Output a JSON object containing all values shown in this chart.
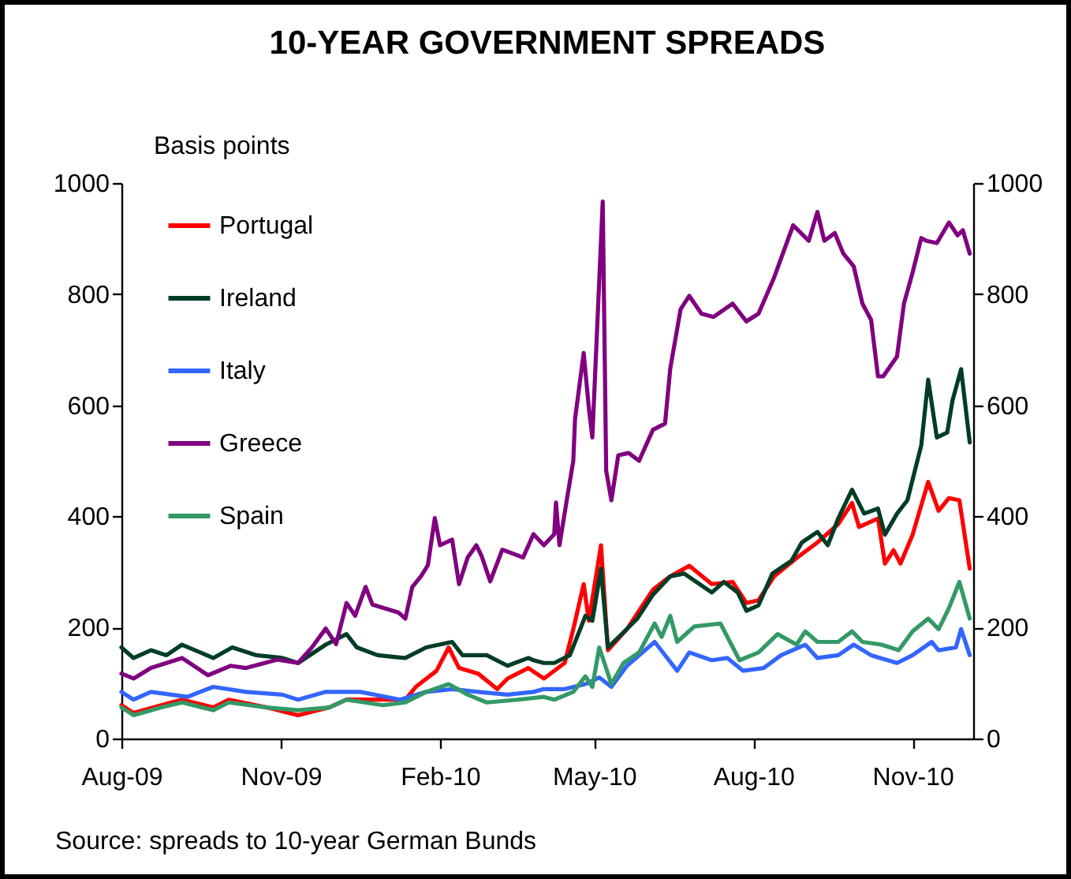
{
  "chart_data": {
    "type": "line",
    "title": "10-YEAR GOVERNMENT SPREADS",
    "ylabel": "Basis points",
    "annotations": [
      "Source: spreads to 10-year German Bunds"
    ],
    "xlim": [
      "2009-08-01",
      "2010-12-06"
    ],
    "xticks": [
      {
        "value": "2009-08-01",
        "label": "Aug-09"
      },
      {
        "value": "2009-11-01",
        "label": "Nov-09"
      },
      {
        "value": "2010-02-01",
        "label": "Feb-10"
      },
      {
        "value": "2010-05-01",
        "label": "May-10"
      },
      {
        "value": "2010-08-01",
        "label": "Aug-10"
      },
      {
        "value": "2010-11-01",
        "label": "Nov-10"
      }
    ],
    "ylim": [
      0,
      1000
    ],
    "yticks": [
      0,
      200,
      400,
      600,
      800,
      1000
    ],
    "y2lim": [
      0,
      1000
    ],
    "y2ticks": [
      0,
      200,
      400,
      600,
      800,
      1000
    ],
    "legend": "top left",
    "grid": false,
    "line_style": "solid",
    "series": [
      {
        "name": "Portugal",
        "color": "#ff0000",
        "x": [
          "2009-08-01",
          "2009-08-08",
          "2009-08-24",
          "2009-09-05",
          "2009-09-23",
          "2009-10-02",
          "2009-10-24",
          "2009-11-11",
          "2009-11-29",
          "2009-12-09",
          "2009-12-24",
          "2010-01-12",
          "2010-01-18",
          "2010-01-30",
          "2010-02-06",
          "2010-02-12",
          "2010-02-23",
          "2010-03-06",
          "2010-03-12",
          "2010-03-24",
          "2010-04-02",
          "2010-04-14",
          "2010-04-19",
          "2010-04-25",
          "2010-04-28",
          "2010-05-05",
          "2010-05-09",
          "2010-05-20",
          "2010-06-04",
          "2010-06-14",
          "2010-06-25",
          "2010-07-08",
          "2010-07-20",
          "2010-07-28",
          "2010-08-04",
          "2010-08-13",
          "2010-08-26",
          "2010-09-07",
          "2010-09-19",
          "2010-09-27",
          "2010-10-01",
          "2010-10-12",
          "2010-10-16",
          "2010-10-21",
          "2010-10-25",
          "2010-11-01",
          "2010-11-10",
          "2010-11-16",
          "2010-11-22",
          "2010-11-28",
          "2010-12-04"
        ],
        "values": [
          60,
          46,
          60,
          70,
          56,
          70,
          56,
          42,
          56,
          70,
          70,
          70,
          93,
          122,
          164,
          127,
          117,
          89,
          108,
          127,
          108,
          136,
          197,
          278,
          212,
          348,
          159,
          197,
          268,
          292,
          311,
          278,
          282,
          244,
          249,
          292,
          325,
          353,
          386,
          424,
          381,
          396,
          315,
          339,
          315,
          367,
          462,
          410,
          433,
          429,
          306
        ]
      },
      {
        "name": "Ireland",
        "color": "#003d26",
        "x": [
          "2009-08-01",
          "2009-08-08",
          "2009-08-18",
          "2009-08-27",
          "2009-09-05",
          "2009-09-23",
          "2009-10-04",
          "2009-10-18",
          "2009-11-02",
          "2009-11-11",
          "2009-11-27",
          "2009-12-09",
          "2009-12-15",
          "2009-12-27",
          "2010-01-12",
          "2010-01-24",
          "2010-02-08",
          "2010-02-14",
          "2010-02-28",
          "2010-03-12",
          "2010-03-24",
          "2010-03-27",
          "2010-04-02",
          "2010-04-08",
          "2010-04-17",
          "2010-04-23",
          "2010-04-26",
          "2010-04-30",
          "2010-05-05",
          "2010-05-09",
          "2010-05-17",
          "2010-05-26",
          "2010-06-04",
          "2010-06-14",
          "2010-06-22",
          "2010-07-08",
          "2010-07-15",
          "2010-07-23",
          "2010-07-28",
          "2010-08-04",
          "2010-08-12",
          "2010-08-23",
          "2010-08-29",
          "2010-09-07",
          "2010-09-13",
          "2010-09-19",
          "2010-09-27",
          "2010-10-04",
          "2010-10-12",
          "2010-10-16",
          "2010-10-23",
          "2010-10-29",
          "2010-11-06",
          "2010-11-10",
          "2010-11-15",
          "2010-11-21",
          "2010-11-24",
          "2010-11-29",
          "2010-12-04"
        ],
        "values": [
          164,
          145,
          159,
          150,
          169,
          145,
          164,
          150,
          145,
          136,
          169,
          188,
          164,
          150,
          145,
          164,
          174,
          150,
          150,
          131,
          145,
          141,
          136,
          136,
          150,
          197,
          221,
          212,
          306,
          164,
          188,
          216,
          259,
          292,
          297,
          263,
          282,
          263,
          230,
          240,
          297,
          320,
          353,
          372,
          348,
          396,
          448,
          405,
          414,
          367,
          405,
          429,
          528,
          646,
          542,
          551,
          608,
          665,
          533
        ]
      },
      {
        "name": "Italy",
        "color": "#3366ff",
        "x": [
          "2009-08-01",
          "2009-08-08",
          "2009-08-18",
          "2009-09-08",
          "2009-09-23",
          "2009-10-12",
          "2009-11-02",
          "2009-11-11",
          "2009-11-27",
          "2009-12-17",
          "2010-01-09",
          "2010-01-24",
          "2010-02-08",
          "2010-02-23",
          "2010-03-12",
          "2010-03-27",
          "2010-04-02",
          "2010-04-14",
          "2010-04-26",
          "2010-05-04",
          "2010-05-11",
          "2010-05-20",
          "2010-06-05",
          "2010-06-18",
          "2010-06-25",
          "2010-07-08",
          "2010-07-17",
          "2010-07-26",
          "2010-08-07",
          "2010-08-17",
          "2010-08-31",
          "2010-09-07",
          "2010-09-19",
          "2010-09-28",
          "2010-10-08",
          "2010-10-23",
          "2010-11-01",
          "2010-11-12",
          "2010-11-16",
          "2010-11-26",
          "2010-11-29",
          "2010-12-04"
        ],
        "values": [
          84,
          70,
          84,
          75,
          93,
          84,
          79,
          70,
          84,
          84,
          70,
          84,
          89,
          84,
          79,
          84,
          89,
          89,
          98,
          110,
          93,
          131,
          174,
          122,
          155,
          141,
          145,
          122,
          127,
          150,
          169,
          145,
          150,
          169,
          150,
          136,
          150,
          174,
          159,
          164,
          197,
          150
        ]
      },
      {
        "name": "Greece",
        "color": "#800080",
        "x": [
          "2009-08-01",
          "2009-08-08",
          "2009-08-18",
          "2009-09-05",
          "2009-09-20",
          "2009-10-03",
          "2009-10-12",
          "2009-10-30",
          "2009-11-11",
          "2009-11-19",
          "2009-11-27",
          "2009-12-03",
          "2009-12-09",
          "2009-12-14",
          "2009-12-20",
          "2009-12-24",
          "2010-01-08",
          "2010-01-12",
          "2010-01-16",
          "2010-01-21",
          "2010-01-25",
          "2010-01-29",
          "2010-02-01",
          "2010-02-08",
          "2010-02-12",
          "2010-02-17",
          "2010-02-22",
          "2010-02-25",
          "2010-03-02",
          "2010-03-09",
          "2010-03-21",
          "2010-03-27",
          "2010-04-02",
          "2010-04-08",
          "2010-04-09",
          "2010-04-11",
          "2010-04-15",
          "2010-04-19",
          "2010-04-20",
          "2010-04-25",
          "2010-04-28",
          "2010-04-30",
          "2010-05-06",
          "2010-05-08",
          "2010-05-11",
          "2010-05-15",
          "2010-05-21",
          "2010-05-27",
          "2010-06-04",
          "2010-06-11",
          "2010-06-14",
          "2010-06-20",
          "2010-06-25",
          "2010-07-02",
          "2010-07-09",
          "2010-07-20",
          "2010-07-28",
          "2010-08-04",
          "2010-08-13",
          "2010-08-24",
          "2010-09-02",
          "2010-09-07",
          "2010-09-11",
          "2010-09-17",
          "2010-09-22",
          "2010-09-28",
          "2010-10-03",
          "2010-10-08",
          "2010-10-12",
          "2010-10-15",
          "2010-10-23",
          "2010-10-27",
          "2010-11-01",
          "2010-11-06",
          "2010-11-09",
          "2010-11-15",
          "2010-11-22",
          "2010-11-27",
          "2010-11-30",
          "2010-12-04"
        ],
        "values": [
          117,
          108,
          127,
          145,
          114,
          131,
          127,
          142,
          136,
          164,
          198,
          170,
          244,
          221,
          273,
          241,
          227,
          216,
          273,
          292,
          312,
          397,
          348,
          358,
          278,
          326,
          348,
          329,
          283,
          340,
          326,
          368,
          348,
          368,
          425,
          348,
          425,
          500,
          575,
          694,
          595,
          542,
          967,
          482,
          429,
          510,
          514,
          500,
          556,
          567,
          666,
          773,
          797,
          765,
          759,
          783,
          751,
          765,
          830,
          924,
          896,
          948,
          896,
          910,
          873,
          850,
          783,
          754,
          652,
          652,
          688,
          783,
          839,
          901,
          896,
          892,
          929,
          906,
          915,
          873
        ]
      },
      {
        "name": "Spain",
        "color": "#339966",
        "x": [
          "2009-08-01",
          "2009-08-08",
          "2009-08-24",
          "2009-09-05",
          "2009-09-23",
          "2009-10-02",
          "2009-10-24",
          "2009-11-11",
          "2009-11-29",
          "2009-12-09",
          "2009-12-30",
          "2010-01-12",
          "2010-01-24",
          "2010-02-06",
          "2010-02-17",
          "2010-02-28",
          "2010-03-18",
          "2010-04-02",
          "2010-04-08",
          "2010-04-19",
          "2010-04-26",
          "2010-04-30",
          "2010-05-04",
          "2010-05-11",
          "2010-05-18",
          "2010-05-27",
          "2010-06-05",
          "2010-06-09",
          "2010-06-14",
          "2010-06-18",
          "2010-06-28",
          "2010-07-13",
          "2010-07-24",
          "2010-08-04",
          "2010-08-15",
          "2010-08-26",
          "2010-08-31",
          "2010-09-07",
          "2010-09-19",
          "2010-09-27",
          "2010-10-03",
          "2010-10-14",
          "2010-10-24",
          "2010-11-01",
          "2010-11-10",
          "2010-11-16",
          "2010-11-22",
          "2010-11-28",
          "2010-12-04"
        ],
        "values": [
          56,
          42,
          56,
          65,
          51,
          65,
          56,
          51,
          56,
          70,
          60,
          65,
          84,
          98,
          79,
          65,
          70,
          75,
          70,
          84,
          112,
          93,
          164,
          98,
          136,
          155,
          207,
          183,
          221,
          174,
          202,
          207,
          141,
          155,
          188,
          169,
          193,
          174,
          174,
          193,
          174,
          169,
          159,
          193,
          216,
          197,
          235,
          282,
          216
        ]
      }
    ]
  }
}
